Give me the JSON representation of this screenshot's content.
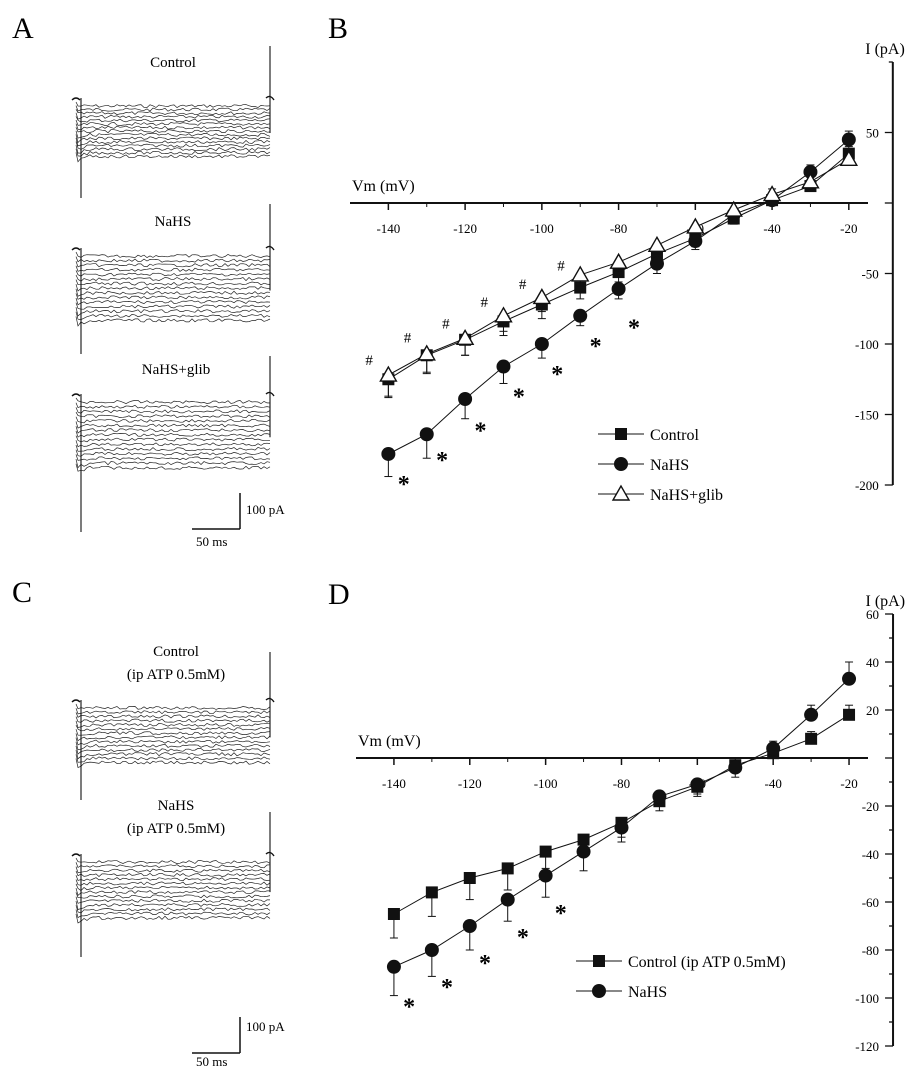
{
  "panels": {
    "A": {
      "letter": "A",
      "traces": [
        {
          "label": "Control"
        },
        {
          "label": "NaHS"
        },
        {
          "label": "NaHS+glib"
        }
      ],
      "scalebar": {
        "y_label": "100 pA",
        "x_label": "50 ms"
      }
    },
    "C": {
      "letter": "C",
      "traces": [
        {
          "label_lines": [
            "Control",
            "(ip ATP 0.5mM)"
          ]
        },
        {
          "label_lines": [
            "NaHS",
            "(ip ATP 0.5mM)"
          ]
        }
      ],
      "scalebar": {
        "y_label": "100 pA",
        "x_label": "50 ms"
      }
    }
  },
  "colors": {
    "ink": "#111111",
    "trace": "#222222",
    "fill_open": "#ffffff"
  },
  "chart_data": [
    {
      "id": "B",
      "letter": "B",
      "type": "line",
      "xlabel": "Vm (mV)",
      "ylabel": "I (pA)",
      "xlim": [
        -150,
        -15
      ],
      "ylim": [
        -200,
        100
      ],
      "xticks": [
        -140,
        -120,
        -100,
        -80,
        -60,
        -40,
        -20
      ],
      "xtick_labels": [
        "-140",
        "-120",
        "-100",
        "-80",
        "-60",
        "-40",
        "-20"
      ],
      "yticks": [
        50,
        -50,
        -100,
        -150,
        -200
      ],
      "ytick_labels": [
        "50",
        "-50",
        "-100",
        "-150",
        "-200"
      ],
      "x": [
        -140,
        -130,
        -120,
        -110,
        -100,
        -90,
        -80,
        -70,
        -60,
        -50,
        -40,
        -30,
        -20
      ],
      "series": [
        {
          "name": "Control",
          "marker": "square",
          "values": [
            -125,
            -108,
            -97,
            -84,
            -72,
            -60,
            -49,
            -36,
            -25,
            -11,
            2,
            12,
            35
          ],
          "errors": [
            13,
            12,
            11,
            10,
            10,
            8,
            7,
            6,
            6,
            4,
            4,
            4,
            5
          ]
        },
        {
          "name": "NaHS",
          "marker": "circle",
          "values": [
            -178,
            -164,
            -139,
            -116,
            -100,
            -80,
            -61,
            -43,
            -27,
            -8,
            2,
            22,
            45
          ],
          "errors": [
            16,
            17,
            14,
            12,
            10,
            7,
            7,
            7,
            6,
            4,
            4,
            5,
            6
          ]
        },
        {
          "name": "NaHS+glib",
          "marker": "triangle",
          "values": [
            -122,
            -107,
            -96,
            -80,
            -67,
            -51,
            -42,
            -30,
            -17,
            -5,
            6,
            15,
            31
          ],
          "errors": [
            15,
            14,
            12,
            11,
            10,
            8,
            6,
            6,
            5,
            4,
            4,
            5,
            5
          ]
        }
      ],
      "annotations": [
        {
          "text": "#",
          "x": -145,
          "y": -112
        },
        {
          "text": "#",
          "x": -135,
          "y": -96
        },
        {
          "text": "#",
          "x": -125,
          "y": -86
        },
        {
          "text": "#",
          "x": -115,
          "y": -71
        },
        {
          "text": "#",
          "x": -105,
          "y": -58
        },
        {
          "text": "#",
          "x": -95,
          "y": -45
        },
        {
          "text": "*",
          "x": -136,
          "y": -195
        },
        {
          "text": "*",
          "x": -126,
          "y": -178
        },
        {
          "text": "*",
          "x": -116,
          "y": -157
        },
        {
          "text": "*",
          "x": -106,
          "y": -133
        },
        {
          "text": "*",
          "x": -96,
          "y": -117
        },
        {
          "text": "*",
          "x": -86,
          "y": -97
        },
        {
          "text": "*",
          "x": -76,
          "y": -84
        }
      ],
      "legend": {
        "position": "bottom-center",
        "entries": [
          "Control",
          "NaHS",
          "NaHS+glib"
        ]
      }
    },
    {
      "id": "D",
      "letter": "D",
      "type": "line",
      "xlabel": "Vm (mV)",
      "ylabel": "I (pA)",
      "xlim": [
        -150,
        -15
      ],
      "ylim": [
        -120,
        60
      ],
      "xticks": [
        -140,
        -120,
        -100,
        -80,
        -60,
        -40,
        -20
      ],
      "xtick_labels": [
        "-140",
        "-120",
        "-100",
        "-80",
        "-60",
        "-40",
        "-20"
      ],
      "yticks": [
        60,
        40,
        20,
        -20,
        -40,
        -60,
        -80,
        -100,
        -120
      ],
      "ytick_labels": [
        "60",
        "40",
        "20",
        "-20",
        "-40",
        "-60",
        "-80",
        "-100",
        "-120"
      ],
      "x": [
        -140,
        -130,
        -120,
        -110,
        -100,
        -90,
        -80,
        -70,
        -60,
        -50,
        -40,
        -30,
        -20
      ],
      "series": [
        {
          "name": "Control (ip ATP 0.5mM)",
          "marker": "square",
          "values": [
            -65,
            -56,
            -50,
            -46,
            -39,
            -34,
            -27,
            -18,
            -12,
            -3,
            2,
            8,
            18
          ],
          "errors": [
            10,
            10,
            9,
            9,
            7,
            6,
            6,
            4,
            4,
            3,
            3,
            3,
            4
          ]
        },
        {
          "name": "NaHS",
          "marker": "circle",
          "values": [
            -87,
            -80,
            -70,
            -59,
            -49,
            -39,
            -29,
            -16,
            -11,
            -4,
            4,
            18,
            33
          ],
          "errors": [
            12,
            11,
            10,
            9,
            9,
            8,
            6,
            4,
            4,
            4,
            3,
            4,
            7
          ]
        }
      ],
      "annotations": [
        {
          "text": "*",
          "x": -136,
          "y": -101
        },
        {
          "text": "*",
          "x": -126,
          "y": -93
        },
        {
          "text": "*",
          "x": -116,
          "y": -83
        },
        {
          "text": "*",
          "x": -106,
          "y": -72
        },
        {
          "text": "*",
          "x": -96,
          "y": -62
        }
      ],
      "legend": {
        "position": "bottom-center",
        "entries": [
          "Control (ip ATP 0.5mM)",
          "NaHS"
        ]
      }
    }
  ]
}
